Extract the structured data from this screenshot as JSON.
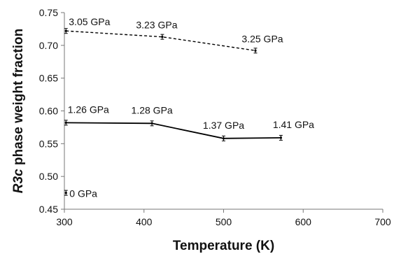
{
  "chart_data": {
    "type": "line",
    "xlabel": "Temperature (K)",
    "ylabel_italic": "R3c",
    "ylabel_rest": " phase weight fraction",
    "xlim": [
      300,
      700
    ],
    "ylim": [
      0.45,
      0.75
    ],
    "x_ticks": [
      "300",
      "400",
      "500",
      "600",
      "700"
    ],
    "y_ticks": [
      "0.45",
      "0.50",
      "0.55",
      "0.60",
      "0.65",
      "0.70",
      "0.75"
    ],
    "grid": false,
    "series": [
      {
        "style": "dashed",
        "points": [
          {
            "x": 302,
            "y": 0.722,
            "label": "3.05 GPa"
          },
          {
            "x": 423,
            "y": 0.713,
            "label": "3.23 GPa"
          },
          {
            "x": 540,
            "y": 0.692,
            "label": "3.25 GPa"
          }
        ]
      },
      {
        "style": "solid",
        "points": [
          {
            "x": 302,
            "y": 0.582,
            "label": "1.26 GPa"
          },
          {
            "x": 410,
            "y": 0.581,
            "label": "1.28 GPa"
          },
          {
            "x": 500,
            "y": 0.558,
            "label": "1.37 GPa"
          },
          {
            "x": 572,
            "y": 0.559,
            "label": "1.41 GPa"
          }
        ]
      },
      {
        "style": "point",
        "points": [
          {
            "x": 302,
            "y": 0.475,
            "label": "0 GPa"
          }
        ]
      }
    ]
  }
}
